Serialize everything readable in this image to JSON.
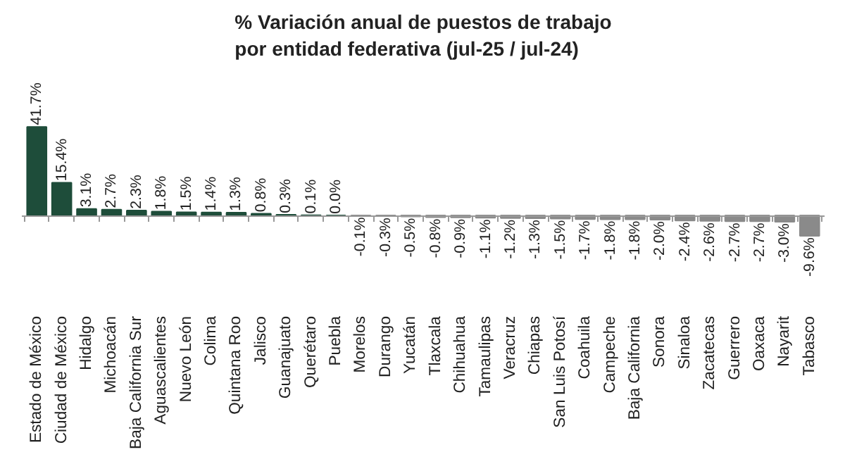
{
  "chart_data": {
    "type": "bar",
    "title": "% Variación anual de puestos de trabajo\npor entidad federativa (jul-25 / jul-24)",
    "categories": [
      "Estado de México",
      "Ciudad de México",
      "Hidalgo",
      "Michoacán",
      "Baja California Sur",
      "Aguascalientes",
      "Nuevo León",
      "Colima",
      "Quintana Roo",
      "Jalisco",
      "Guanajuato",
      "Querétaro",
      "Puebla",
      "Morelos",
      "Durango",
      "Yucatán",
      "Tlaxcala",
      "Chihuahua",
      "Tamaulipas",
      "Veracruz",
      "Chiapas",
      "San Luis Potosí",
      "Coahuila",
      "Campeche",
      "Baja California",
      "Sonora",
      "Sinaloa",
      "Zacatecas",
      "Guerrero",
      "Oaxaca",
      "Nayarit",
      "Tabasco"
    ],
    "values": [
      41.7,
      15.4,
      3.1,
      2.7,
      2.3,
      1.8,
      1.5,
      1.4,
      1.3,
      0.8,
      0.3,
      0.1,
      0.0,
      -0.1,
      -0.3,
      -0.5,
      -0.8,
      -0.9,
      -1.1,
      -1.2,
      -1.3,
      -1.5,
      -1.7,
      -1.8,
      -1.8,
      -2.0,
      -2.4,
      -2.6,
      -2.7,
      -2.7,
      -3.0,
      -9.6
    ],
    "value_labels": [
      "41.7%",
      "15.4%",
      "3.1%",
      "2.7%",
      "2.3%",
      "1.8%",
      "1.5%",
      "1.4%",
      "1.3%",
      "0.8%",
      "0.3%",
      "0.1%",
      "0.0%",
      "-0.1%",
      "-0.3%",
      "-0.5%",
      "-0.8%",
      "-0.9%",
      "-1.1%",
      "-1.2%",
      "-1.3%",
      "-1.5%",
      "-1.7%",
      "-1.8%",
      "-1.8%",
      "-2.0%",
      "-2.4%",
      "-2.6%",
      "-2.7%",
      "-2.7%",
      "-3.0%",
      "-9.6%"
    ],
    "colors": [
      "#1e4d3a",
      "#1e4d3a",
      "#1e4d3a",
      "#1e4d3a",
      "#1e4d3a",
      "#1e4d3a",
      "#1e4d3a",
      "#1e4d3a",
      "#1e4d3a",
      "#1e4d3a",
      "#1e4d3a",
      "#1e4d3a",
      "#1e4d3a",
      "#8a8a8a",
      "#8a8a8a",
      "#8a8a8a",
      "#8a8a8a",
      "#8a8a8a",
      "#8a8a8a",
      "#8a8a8a",
      "#8a8a8a",
      "#8a8a8a",
      "#8a8a8a",
      "#8a8a8a",
      "#8a8a8a",
      "#8a8a8a",
      "#8a8a8a",
      "#8a8a8a",
      "#8a8a8a",
      "#8a8a8a",
      "#8a8a8a",
      "#8a8a8a"
    ]
  }
}
